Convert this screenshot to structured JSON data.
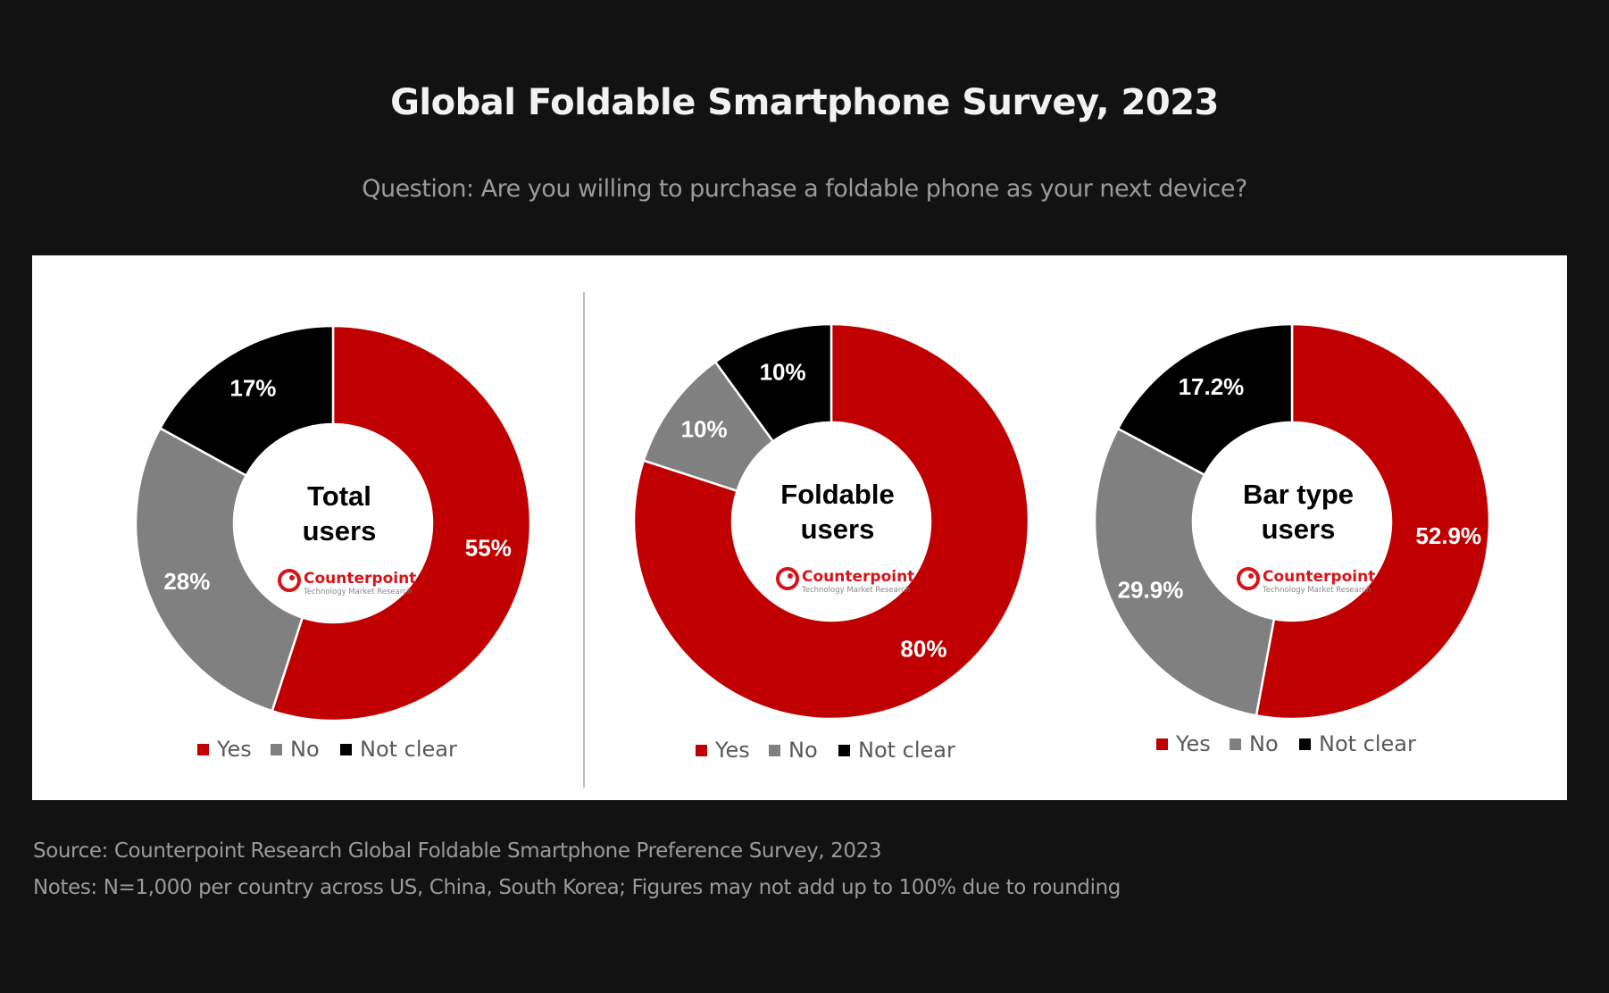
{
  "title": "Global Foldable Smartphone Survey, 2023",
  "subtitle": "Question: Are you willing to purchase a foldable phone as your next device?",
  "colors": {
    "Yes": "#c00000",
    "No": "#808080",
    "Not clear": "#000000"
  },
  "logo": {
    "name": "Counterpoint",
    "tagline": "Technology Market Research"
  },
  "chart_data": [
    {
      "type": "pie",
      "style": "donut",
      "center_label": [
        "Total",
        "users"
      ],
      "categories": [
        "Yes",
        "No",
        "Not clear"
      ],
      "values": [
        55,
        28,
        17
      ],
      "labels": [
        "55%",
        "28%",
        "17%"
      ],
      "legend": [
        "Yes",
        "No",
        "Not clear"
      ]
    },
    {
      "type": "pie",
      "style": "donut",
      "center_label": [
        "Foldable",
        "users"
      ],
      "categories": [
        "Yes",
        "No",
        "Not clear"
      ],
      "values": [
        80,
        10,
        10
      ],
      "labels": [
        "80%",
        "10%",
        "10%"
      ],
      "legend": [
        "Yes",
        "No",
        "Not clear"
      ]
    },
    {
      "type": "pie",
      "style": "donut",
      "center_label": [
        "Bar type",
        "users"
      ],
      "categories": [
        "Yes",
        "No",
        "Not clear"
      ],
      "values": [
        52.9,
        29.9,
        17.2
      ],
      "labels": [
        "52.9%",
        "29.9%",
        "17.2%"
      ],
      "legend": [
        "Yes",
        "No",
        "Not clear"
      ]
    }
  ],
  "footer": {
    "source": "Source: Counterpoint Research Global Foldable Smartphone Preference Survey, 2023",
    "notes": "Notes: N=1,000 per country across US, China, South Korea; Figures may not add up to 100% due to rounding"
  }
}
